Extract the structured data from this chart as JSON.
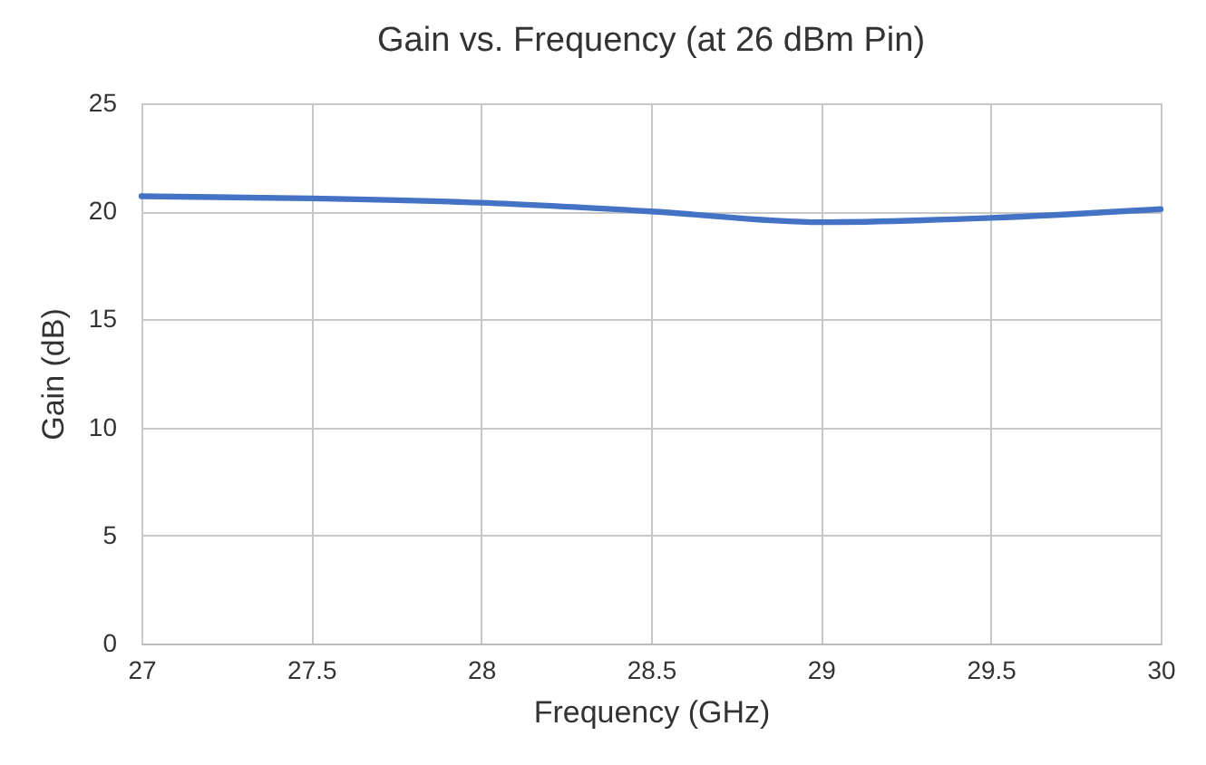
{
  "chart_data": {
    "type": "line",
    "title": "Gain vs. Frequency (at 26 dBm Pin)",
    "xlabel": "Frequency (GHz)",
    "ylabel": "Gain (dB)",
    "x": [
      27,
      27.5,
      28,
      28.5,
      29,
      29.5,
      30
    ],
    "series": [
      {
        "color": "#4472c4",
        "values": [
          20.7,
          20.6,
          20.4,
          20,
          19.5,
          19.7,
          20.1
        ]
      }
    ],
    "xlim": [
      27,
      30
    ],
    "xticks": [
      27,
      27.5,
      28,
      28.5,
      29,
      29.5,
      30
    ],
    "ylim": [
      0,
      25
    ],
    "yticks": [
      0,
      5,
      10,
      15,
      20,
      25
    ],
    "grid": true,
    "marker": "none",
    "line_style": "solid"
  }
}
